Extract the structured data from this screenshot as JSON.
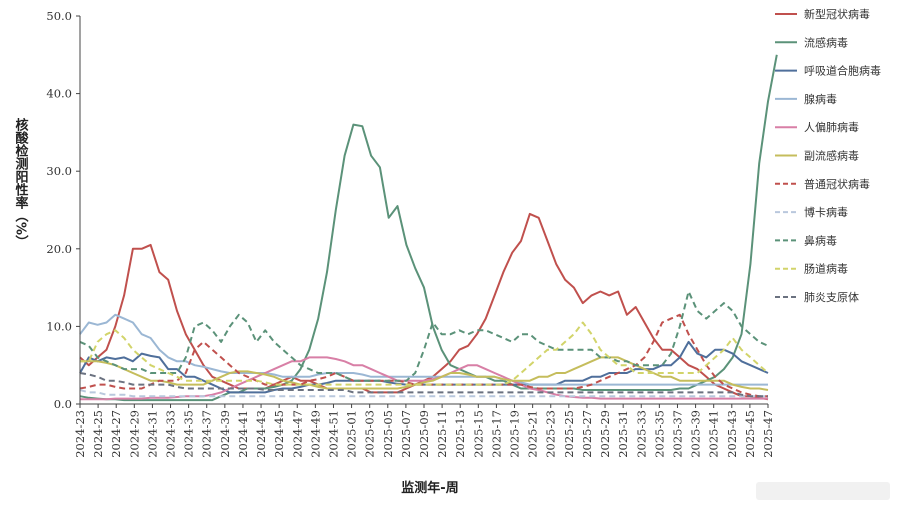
{
  "chart_data": {
    "type": "line",
    "ylabel": "核酸检测阳性率（%）",
    "xlabel": "监测年-周",
    "ylim": [
      0,
      50
    ],
    "yticks": [
      "0.0",
      "10.0",
      "20.0",
      "30.0",
      "40.0",
      "50.0"
    ],
    "x_tick_labels": [
      "2024-23",
      "2024-25",
      "2024-27",
      "2024-29",
      "2024-31",
      "2024-33",
      "2024-35",
      "2024-37",
      "2024-39",
      "2024-41",
      "2024-43",
      "2024-45",
      "2024-47",
      "2024-49",
      "2024-51",
      "2025-01",
      "2025-03",
      "2025-05",
      "2025-07",
      "2025-09",
      "2025-11",
      "2025-13",
      "2025-15",
      "2025-17",
      "2025-19",
      "2025-21",
      "2025-23",
      "2025-25",
      "2025-27",
      "2025-29",
      "2025-31",
      "2025-33",
      "2025-35",
      "2025-37",
      "2025-39",
      "2025-41",
      "2025-43",
      "2025-45",
      "2025-47"
    ],
    "grid": false,
    "legend_position": "right",
    "series": [
      {
        "name": "新型冠状病毒",
        "color": "#c0504d",
        "dash": false,
        "values": [
          6,
          5,
          6,
          7,
          10,
          14,
          20,
          20,
          20.5,
          17,
          16,
          12,
          9,
          7,
          5,
          3.5,
          3,
          2.5,
          2,
          2,
          2,
          2,
          2.5,
          3,
          3.5,
          3,
          3,
          2.5,
          2,
          2,
          2,
          2,
          2,
          1.5,
          1.5,
          1.5,
          1.5,
          2,
          2.5,
          3,
          3.5,
          4.5,
          5.5,
          7,
          7.5,
          9,
          11,
          14,
          17,
          19.5,
          21,
          24.5,
          24,
          21,
          18,
          16,
          15,
          13,
          14,
          14.5,
          14,
          14.5,
          11.5,
          12.5,
          10.5,
          8.5,
          7,
          7,
          6,
          5,
          4.5,
          3.5,
          2.5,
          2,
          1.5,
          1,
          1,
          0.8,
          0.6
        ]
      },
      {
        "name": "流感病毒",
        "color": "#5b9279",
        "dash": false,
        "values": [
          1,
          0.8,
          0.7,
          0.6,
          0.6,
          0.5,
          0.5,
          0.5,
          0.5,
          0.5,
          0.5,
          0.5,
          0.5,
          0.5,
          0.5,
          0.5,
          1,
          1.5,
          1.5,
          2,
          2,
          2,
          2.2,
          2.5,
          3,
          4.5,
          7,
          11,
          17,
          25,
          32,
          36,
          35.8,
          32,
          30.5,
          24,
          25.5,
          20.5,
          17.5,
          15,
          10,
          7,
          5,
          4.5,
          4,
          3.5,
          3.5,
          3,
          3,
          2.5,
          2,
          2,
          2,
          2,
          2,
          2,
          2,
          1.8,
          1.8,
          1.8,
          1.8,
          1.8,
          1.8,
          1.8,
          1.8,
          1.8,
          1.8,
          1.8,
          2,
          2,
          2.5,
          3,
          3.5,
          4.5,
          6,
          9,
          18,
          31,
          39,
          45
        ]
      },
      {
        "name": "呼吸道合胞病毒",
        "color": "#4f6f9b",
        "dash": false,
        "values": [
          4,
          6,
          5.5,
          6,
          5.8,
          6,
          5.5,
          6.5,
          6.2,
          6,
          4.5,
          4.5,
          3.5,
          3.5,
          3,
          2.5,
          2,
          1.5,
          1.5,
          1.5,
          1.5,
          1.5,
          1.8,
          2,
          2,
          2.2,
          2.5,
          2.5,
          2.7,
          3,
          3,
          3,
          3,
          3,
          3,
          2.8,
          2.6,
          2.5,
          2.5,
          2.5,
          2.5,
          2.5,
          2.5,
          2.5,
          2.5,
          2.5,
          2.5,
          2.5,
          2.5,
          2.5,
          2.5,
          2.5,
          2.5,
          2.5,
          2.5,
          3,
          3,
          3,
          3.5,
          3.5,
          4,
          4,
          4,
          4.5,
          4.5,
          4.5,
          5,
          5,
          6,
          8,
          6.5,
          6,
          7,
          7,
          6.5,
          5.5,
          5,
          4.5,
          4
        ]
      },
      {
        "name": "腺病毒",
        "color": "#9bb7d4",
        "dash": false,
        "values": [
          9,
          10.5,
          10.2,
          10.5,
          11.5,
          11,
          10.5,
          9,
          8.5,
          7,
          6,
          5.5,
          5.5,
          5,
          4.8,
          4.5,
          4.2,
          4,
          4,
          4,
          4,
          4,
          3.8,
          3.5,
          3.5,
          3.5,
          3.5,
          3.8,
          4,
          4,
          4,
          4,
          3.8,
          3.5,
          3.5,
          3.5,
          3.5,
          3.5,
          3.5,
          3.5,
          3.5,
          3.5,
          3.5,
          3.5,
          3.5,
          3.5,
          3.5,
          3.5,
          3.2,
          3,
          2.8,
          2.5,
          2.5,
          2.5,
          2.5,
          2.5,
          2.5,
          2.5,
          2.5,
          2.5,
          2.5,
          2.5,
          2.5,
          2.5,
          2.5,
          2.5,
          2.5,
          2.5,
          2.5,
          2.5,
          2.5,
          2.5,
          2.5,
          2.5,
          2.5,
          2.5,
          2.5,
          2.5,
          2.5
        ]
      },
      {
        "name": "人偏肺病毒",
        "color": "#d87fa6",
        "dash": false,
        "values": [
          0.6,
          0.6,
          0.6,
          0.6,
          0.7,
          0.7,
          0.7,
          0.7,
          0.8,
          0.8,
          0.8,
          0.9,
          1,
          1,
          1,
          1.2,
          1.5,
          2,
          2.5,
          3,
          3.5,
          4,
          4.5,
          5,
          5.5,
          5.5,
          6,
          6,
          6,
          5.8,
          5.5,
          5,
          5,
          4.5,
          4,
          3.5,
          3,
          3,
          3,
          3,
          3.2,
          3.5,
          4,
          4.5,
          5,
          5,
          4.5,
          4,
          3.5,
          3,
          2.5,
          2,
          1.8,
          1.5,
          1.2,
          1,
          0.9,
          0.8,
          0.8,
          0.7,
          0.7,
          0.7,
          0.7,
          0.7,
          0.7,
          0.7,
          0.7,
          0.7,
          0.7,
          0.7,
          0.7,
          0.7,
          0.7,
          0.7,
          0.7,
          0.7,
          0.7,
          0.7,
          0.7
        ]
      },
      {
        "name": "副流感病毒",
        "color": "#c5bd5c",
        "dash": false,
        "values": [
          5.5,
          5.5,
          5.5,
          5.3,
          5,
          4.5,
          4,
          3.5,
          3,
          3,
          2.8,
          2.5,
          2.5,
          2.5,
          2.5,
          3,
          3.5,
          4,
          4.2,
          4.2,
          4,
          3.8,
          3.5,
          3,
          2.8,
          2.5,
          2.5,
          2.2,
          2,
          2,
          2,
          2,
          2,
          2,
          2,
          2,
          2,
          2.2,
          2.5,
          2.8,
          3,
          3.5,
          4,
          4,
          3.8,
          3.5,
          3.5,
          3.5,
          3.2,
          3,
          3,
          3,
          3.5,
          3.5,
          4,
          4,
          4.5,
          5,
          5.5,
          6,
          6,
          6,
          5.5,
          5,
          4.5,
          4,
          3.5,
          3.5,
          3,
          3,
          3,
          3,
          3,
          3,
          2.5,
          2.2,
          2,
          2,
          1.8
        ]
      },
      {
        "name": "普通冠状病毒",
        "color": "#c0504d",
        "dash": true,
        "values": [
          2,
          2.2,
          2.5,
          2.5,
          2.2,
          2,
          2,
          2,
          2.5,
          3,
          3,
          3,
          4,
          7,
          8,
          7,
          6,
          5,
          4,
          3.5,
          3,
          2.5,
          2.5,
          2.5,
          2.5,
          2.5,
          3,
          3.2,
          3.5,
          4,
          3.5,
          3,
          3,
          3,
          3,
          3,
          3,
          2.8,
          2.5,
          2.5,
          2.5,
          2.5,
          2.5,
          2.5,
          2.5,
          2.5,
          2.5,
          2.5,
          2.5,
          2.5,
          2.5,
          2.2,
          2,
          2,
          2,
          2,
          2,
          2.2,
          2.5,
          3,
          3.5,
          4,
          4.5,
          5,
          6,
          8,
          10.5,
          11,
          11.5,
          9,
          7,
          5,
          3.5,
          2.5,
          2,
          1.5,
          1.2,
          1,
          1
        ]
      },
      {
        "name": "博卡病毒",
        "color": "#b9c8dd",
        "dash": true,
        "values": [
          1.8,
          1.5,
          1.5,
          1.2,
          1.2,
          1.2,
          1,
          1,
          1,
          1,
          1,
          1,
          1,
          1,
          1,
          1,
          1,
          1,
          1,
          1,
          1,
          1,
          1,
          1,
          1,
          1,
          1,
          1,
          1,
          1,
          1,
          1,
          1,
          1,
          1,
          1,
          1,
          1,
          1,
          1,
          1,
          1,
          1,
          1,
          1,
          1,
          1,
          1,
          1,
          1,
          1,
          1,
          1,
          1,
          1,
          1,
          1,
          1,
          1,
          1,
          1,
          1,
          1,
          1,
          1,
          1,
          1,
          1,
          1,
          1,
          1,
          1,
          1,
          1,
          1,
          1,
          1,
          1,
          1
        ]
      },
      {
        "name": "鼻病毒",
        "color": "#5b9279",
        "dash": true,
        "values": [
          8,
          7.5,
          6,
          5.5,
          5,
          4.5,
          4.5,
          4.5,
          4,
          4,
          4,
          4,
          6,
          10,
          10.5,
          9.5,
          8,
          10,
          11.5,
          10.5,
          8,
          9.5,
          8,
          7,
          6,
          5,
          4.5,
          4,
          4,
          4,
          3.5,
          3,
          3,
          3,
          3,
          3,
          3,
          3,
          4,
          7,
          10.5,
          9,
          9,
          9.5,
          9,
          9.5,
          9.5,
          9,
          8.5,
          8,
          9,
          9,
          8,
          7.5,
          7,
          7,
          7,
          7,
          7,
          6,
          6,
          5.5,
          5.5,
          5,
          5,
          5,
          5,
          6.5,
          10,
          14.5,
          12,
          11,
          12,
          13,
          12,
          10,
          9,
          8,
          7.5
        ]
      },
      {
        "name": "肠道病毒",
        "color": "#d2d46a",
        "dash": true,
        "values": [
          5.5,
          5.5,
          8,
          9,
          9.5,
          8.5,
          7,
          6,
          5,
          4.5,
          4,
          3.5,
          3,
          3,
          3,
          3,
          3,
          3,
          3,
          3,
          3,
          2.8,
          2.5,
          2.5,
          2.5,
          2.5,
          2.5,
          2.5,
          2.5,
          2.5,
          2.5,
          2.5,
          2.5,
          2.5,
          2.5,
          2.5,
          2.5,
          2.5,
          2.5,
          2.5,
          2.5,
          2.5,
          2.5,
          2.5,
          2.5,
          2.5,
          2.5,
          2.5,
          2.5,
          3,
          4,
          5,
          6,
          7,
          7,
          8,
          9,
          10.5,
          9,
          7,
          6,
          5,
          5,
          4,
          4,
          4,
          4,
          4,
          4,
          4,
          4,
          5,
          6,
          7,
          8.5,
          7,
          6,
          5,
          4
        ]
      },
      {
        "name": "肺炎支原体",
        "color": "#6b7280",
        "dash": true,
        "values": [
          4,
          3.8,
          3.5,
          3,
          3,
          2.8,
          2.5,
          2.5,
          2.5,
          2.5,
          2.5,
          2.2,
          2,
          2,
          2,
          2,
          2,
          2,
          2,
          2,
          2,
          1.8,
          1.8,
          1.8,
          1.8,
          1.8,
          1.8,
          1.8,
          1.8,
          1.8,
          1.8,
          1.5,
          1.5,
          1.5,
          1.5,
          1.5,
          1.5,
          1.5,
          1.5,
          1.5,
          1.5,
          1.5,
          1.5,
          1.5,
          1.5,
          1.5,
          1.5,
          1.5,
          1.5,
          1.5,
          1.5,
          1.5,
          1.5,
          1.5,
          1.5,
          1.5,
          1.5,
          1.5,
          1.5,
          1.5,
          1.5,
          1.5,
          1.5,
          1.5,
          1.5,
          1.5,
          1.5,
          1.5,
          1.5,
          1.5,
          1.5,
          1.5,
          1.5,
          1.5,
          1.5,
          1.2,
          1,
          1,
          1
        ]
      }
    ]
  }
}
